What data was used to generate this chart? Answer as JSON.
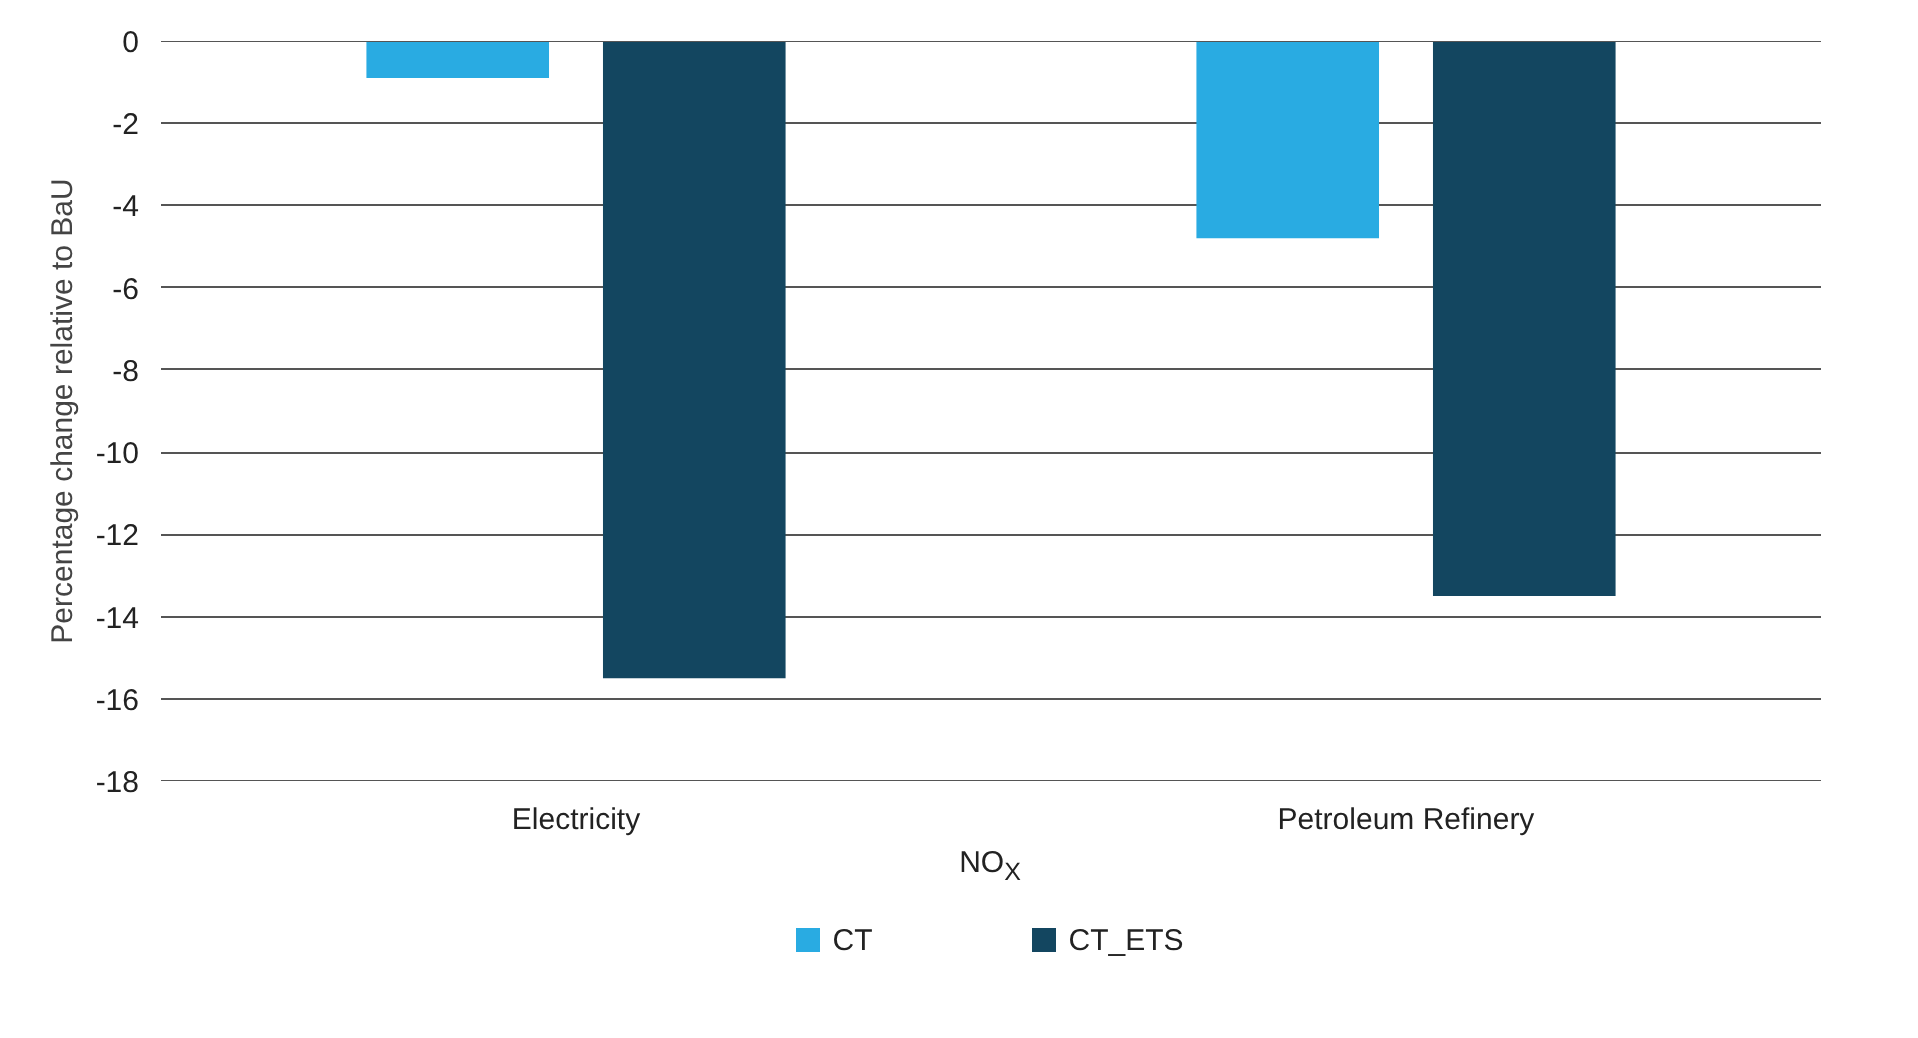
{
  "chart_data": {
    "type": "bar",
    "categories": [
      "Electricity",
      "Petroleum Refinery"
    ],
    "series": [
      {
        "name": "CT",
        "color": "#29abe2",
        "values": [
          -0.9,
          -4.8
        ]
      },
      {
        "name": "CT_ETS",
        "color": "#134660",
        "values": [
          -15.5,
          -13.5
        ]
      }
    ],
    "xlabel": "NO$_{X}$",
    "ylabel": "Percentage change relative to BaU",
    "ylim": [
      -18,
      0
    ],
    "yticks": [
      0,
      -2,
      -4,
      -6,
      -8,
      -10,
      -12,
      -14,
      -16,
      -18
    ],
    "grid": "y",
    "legend": "bottom"
  }
}
